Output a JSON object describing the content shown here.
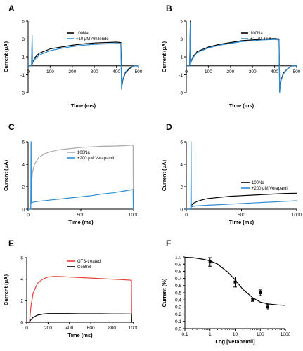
{
  "colors": {
    "black": "#000000",
    "blue": "#2f8fd6",
    "gray": "#aaaaaa",
    "red": "#e8403a"
  },
  "chart_data": [
    {
      "type": "line",
      "panel": "A",
      "xlabel": "Time (ms)",
      "ylabel": "Current (μA)",
      "xlim": [
        0,
        500
      ],
      "ylim": [
        -3,
        5
      ],
      "xticks": [
        0,
        100,
        200,
        300,
        400,
        500
      ],
      "yticks": [
        -3,
        -1,
        1,
        3,
        5
      ],
      "legend_position": "top-center",
      "series": [
        {
          "name": "100Na",
          "color": "#000000",
          "x": [
            0,
            15,
            20,
            25,
            30,
            50,
            100,
            150,
            200,
            250,
            300,
            350,
            400,
            420,
            425,
            430,
            440,
            460,
            480,
            500
          ],
          "y": [
            0,
            0,
            0.3,
            0.6,
            0.9,
            1.4,
            1.9,
            2.1,
            2.3,
            2.45,
            2.55,
            2.6,
            2.65,
            2.6,
            -2.2,
            -1.5,
            -0.8,
            -0.3,
            0,
            0
          ]
        },
        {
          "name": "+10 μM Amiloride",
          "color": "#2f8fd6",
          "x": [
            0,
            15,
            18,
            20,
            25,
            30,
            50,
            100,
            150,
            200,
            250,
            300,
            350,
            400,
            420,
            423,
            425,
            430,
            440,
            460,
            480,
            500
          ],
          "y": [
            0,
            0,
            3.4,
            0.3,
            0.5,
            0.7,
            1.2,
            1.7,
            1.95,
            2.15,
            2.3,
            2.4,
            2.45,
            2.5,
            2.5,
            -2.6,
            -2.0,
            -1.4,
            -0.7,
            -0.2,
            0,
            0
          ]
        }
      ]
    },
    {
      "type": "line",
      "panel": "B",
      "xlabel": "Time (ms)",
      "ylabel": "Current (μA)",
      "xlim": [
        0,
        500
      ],
      "ylim": [
        -3,
        5
      ],
      "xticks": [
        0,
        100,
        200,
        300,
        400,
        500
      ],
      "yticks": [
        -3,
        -1,
        1,
        3,
        5
      ],
      "legend_position": "top-right",
      "series": [
        {
          "name": "100Na",
          "color": "#000000",
          "x": [
            0,
            15,
            18,
            20,
            25,
            30,
            50,
            100,
            150,
            200,
            250,
            300,
            350,
            400,
            420,
            423,
            425,
            430,
            440,
            460,
            480,
            500
          ],
          "y": [
            0,
            0,
            5.0,
            0.4,
            0.7,
            1.0,
            1.6,
            2.1,
            2.4,
            2.6,
            2.8,
            2.9,
            3.0,
            3.05,
            3.0,
            -2.9,
            -2.2,
            -1.5,
            -0.8,
            -0.3,
            0,
            0
          ]
        },
        {
          "name": "+1 μM TTX",
          "color": "#2f8fd6",
          "x": [
            0,
            15,
            18,
            20,
            25,
            30,
            50,
            100,
            150,
            200,
            250,
            300,
            350,
            400,
            420,
            423,
            425,
            430,
            440,
            460,
            480,
            500
          ],
          "y": [
            0,
            0,
            4.8,
            0.3,
            0.6,
            0.9,
            1.5,
            2.0,
            2.3,
            2.5,
            2.7,
            2.8,
            2.9,
            2.95,
            2.9,
            -3.0,
            -2.3,
            -1.6,
            -0.9,
            -0.3,
            0,
            0
          ]
        }
      ]
    },
    {
      "type": "line",
      "panel": "C",
      "xlabel": "Time (ms)",
      "ylabel": "Current (μA)",
      "xlim": [
        0,
        1000
      ],
      "ylim": [
        0,
        6
      ],
      "xticks": [
        0,
        500,
        1000
      ],
      "yticks": [
        0,
        2,
        4,
        6
      ],
      "legend_position": "center-right",
      "series": [
        {
          "name": "100Na",
          "color": "#aaaaaa",
          "x": [
            0,
            25,
            28,
            30,
            40,
            60,
            100,
            150,
            200,
            300,
            400,
            500,
            600,
            700,
            800,
            900,
            995,
            997,
            1000
          ],
          "y": [
            0,
            0,
            6.0,
            2.0,
            3.2,
            4.0,
            4.6,
            4.9,
            5.1,
            5.3,
            5.4,
            5.5,
            5.55,
            5.6,
            5.62,
            5.65,
            5.7,
            0,
            0
          ]
        },
        {
          "name": "+200 μM Verapamil",
          "color": "#2f8fd6",
          "x": [
            0,
            25,
            28,
            30,
            40,
            60,
            100,
            200,
            300,
            400,
            500,
            600,
            700,
            800,
            900,
            995,
            997,
            1000
          ],
          "y": [
            0,
            0,
            6.0,
            0.55,
            0.6,
            0.65,
            0.7,
            0.8,
            0.9,
            1.0,
            1.1,
            1.2,
            1.35,
            1.45,
            1.6,
            1.75,
            0,
            0
          ]
        }
      ]
    },
    {
      "type": "line",
      "panel": "D",
      "xlabel": "Time (ms)",
      "ylabel": "Current (μA)",
      "xlim": [
        0,
        1000
      ],
      "ylim": [
        0,
        6
      ],
      "xticks": [
        0,
        500,
        1000
      ],
      "yticks": [
        0,
        2,
        4,
        6
      ],
      "legend_position": "center-right",
      "series": [
        {
          "name": "100Na",
          "color": "#000000",
          "x": [
            0,
            40,
            45,
            60,
            100,
            150,
            200,
            300,
            400,
            500,
            600,
            700,
            800,
            900,
            1000
          ],
          "y": [
            0,
            0,
            0.3,
            0.5,
            0.7,
            0.85,
            0.95,
            1.05,
            1.15,
            1.2,
            1.25,
            1.3,
            1.35,
            1.4,
            1.42
          ]
        },
        {
          "name": "+200 μM Verapamil",
          "color": "#2f8fd6",
          "x": [
            0,
            40,
            43,
            45,
            60,
            100,
            200,
            300,
            400,
            500,
            600,
            700,
            800,
            900,
            1000
          ],
          "y": [
            0,
            0,
            6.0,
            0.2,
            0.25,
            0.3,
            0.35,
            0.4,
            0.45,
            0.5,
            0.55,
            0.6,
            0.65,
            0.7,
            0.75
          ]
        }
      ]
    },
    {
      "type": "line",
      "panel": "E",
      "xlabel": "Time (ms)",
      "ylabel": "Current (μA)",
      "xlim": [
        0,
        1000
      ],
      "ylim": [
        0,
        6
      ],
      "xticks": [
        0,
        200,
        400,
        600,
        800,
        1000
      ],
      "yticks": [
        0,
        2,
        4,
        6
      ],
      "legend_position": "top-right",
      "series": [
        {
          "name": "GTS-treated",
          "color": "#e8403a",
          "x": [
            0,
            25,
            30,
            40,
            60,
            100,
            150,
            200,
            250,
            300,
            400,
            500,
            600,
            700,
            800,
            900,
            980,
            982,
            1000
          ],
          "y": [
            0,
            0,
            0.5,
            1.5,
            2.7,
            3.6,
            4.0,
            4.2,
            4.25,
            4.25,
            4.2,
            4.15,
            4.1,
            4.05,
            4.0,
            3.95,
            3.9,
            0,
            0
          ]
        },
        {
          "name": "Control",
          "color": "#000000",
          "x": [
            0,
            25,
            30,
            40,
            60,
            100,
            150,
            200,
            300,
            400,
            500,
            600,
            700,
            800,
            900,
            980,
            982,
            1000
          ],
          "y": [
            0,
            0,
            0.1,
            0.25,
            0.45,
            0.65,
            0.75,
            0.8,
            0.8,
            0.8,
            0.78,
            0.78,
            0.78,
            0.77,
            0.77,
            0.76,
            0,
            0
          ]
        }
      ]
    },
    {
      "type": "scatter",
      "panel": "F",
      "xlabel": "Log [Verapamil]",
      "ylabel": "Current (%)",
      "xscale": "log",
      "xlim": [
        0.1,
        1000
      ],
      "ylim": [
        0,
        1.0
      ],
      "xticks": [
        0.1,
        1,
        10,
        100,
        1000
      ],
      "xtick_labels": [
        "0.1",
        "1",
        "10",
        "100",
        "1000"
      ],
      "yticks": [
        0,
        0.1,
        0.2,
        0.3,
        0.4,
        0.5,
        0.6,
        0.7,
        0.8,
        0.9,
        1.0
      ],
      "ytick_labels": [
        "0.0",
        "0.1",
        "0.2",
        "0.3",
        "0.4",
        "0.5",
        "0.6",
        "0.7",
        "0.8",
        "0.9",
        "1.0"
      ],
      "points": {
        "x": [
          1,
          10,
          50,
          100,
          200
        ],
        "y": [
          0.93,
          0.65,
          0.4,
          0.5,
          0.3
        ],
        "err": [
          0.06,
          0.07,
          0.02,
          0.04,
          0.04
        ]
      },
      "fit": {
        "x": [
          0.1,
          0.2,
          0.5,
          1,
          2,
          5,
          10,
          20,
          50,
          100,
          200,
          500,
          1000
        ],
        "y": [
          0.995,
          0.99,
          0.97,
          0.945,
          0.9,
          0.79,
          0.68,
          0.55,
          0.43,
          0.37,
          0.345,
          0.33,
          0.325
        ]
      }
    }
  ]
}
